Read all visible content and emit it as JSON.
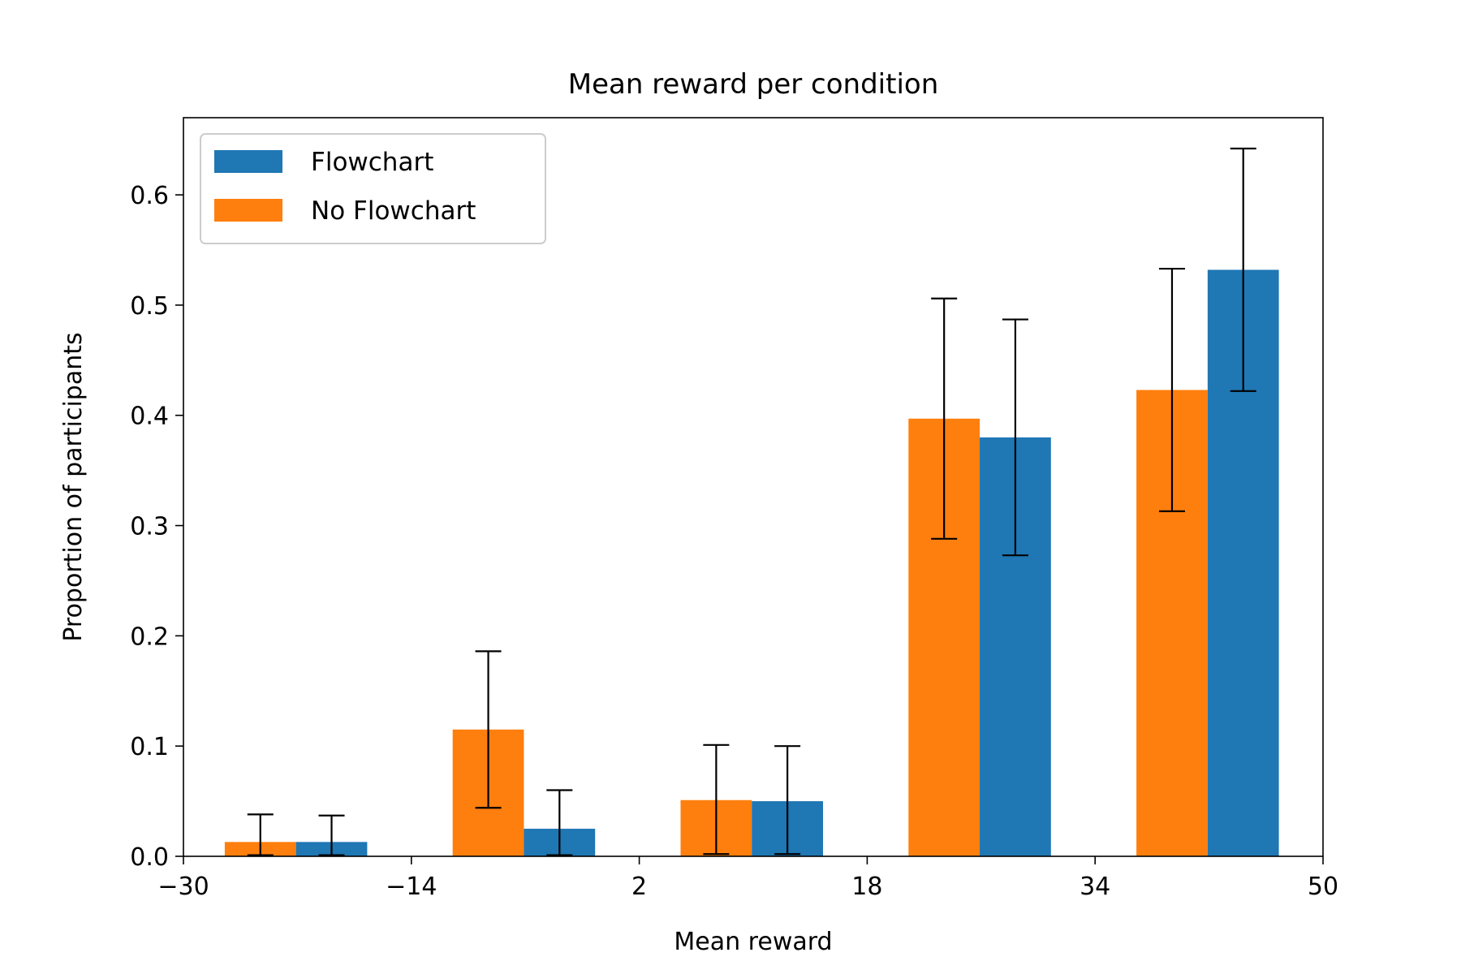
{
  "chart_data": {
    "type": "bar",
    "title": "Mean reward per condition",
    "xlabel": "Mean reward",
    "ylabel": "Proportion of participants",
    "xlim": [
      -30,
      50
    ],
    "ylim": [
      0,
      0.67
    ],
    "xticks": [
      -30,
      -14,
      2,
      18,
      34,
      50
    ],
    "xtick_labels": [
      "−30",
      "−14",
      "2",
      "18",
      "34",
      "50"
    ],
    "yticks": [
      0.0,
      0.1,
      0.2,
      0.3,
      0.4,
      0.5,
      0.6
    ],
    "ytick_labels": [
      "0.0",
      "0.1",
      "0.2",
      "0.3",
      "0.4",
      "0.5",
      "0.6"
    ],
    "bin_width": 5,
    "grid": false,
    "legend_position": "top-left",
    "series": [
      {
        "name": "No Flowchart",
        "color": "#ff7f0e",
        "x_left": [
          -27.1,
          -11.1,
          4.9,
          20.9,
          36.9
        ],
        "values": [
          0.013,
          0.115,
          0.051,
          0.397,
          0.423
        ],
        "err_low": [
          0.001,
          0.044,
          0.002,
          0.288,
          0.313
        ],
        "err_high": [
          0.038,
          0.186,
          0.101,
          0.506,
          0.533
        ]
      },
      {
        "name": "Flowchart",
        "color": "#1f77b4",
        "x_left": [
          -22.1,
          -6.1,
          9.9,
          25.9,
          41.9
        ],
        "values": [
          0.013,
          0.025,
          0.05,
          0.38,
          0.532
        ],
        "err_low": [
          0.001,
          0.001,
          0.002,
          0.273,
          0.422
        ],
        "err_high": [
          0.037,
          0.06,
          0.1,
          0.487,
          0.642
        ]
      }
    ],
    "legend": [
      {
        "label": "Flowchart",
        "color": "#1f77b4"
      },
      {
        "label": "No Flowchart",
        "color": "#ff7f0e"
      }
    ]
  }
}
